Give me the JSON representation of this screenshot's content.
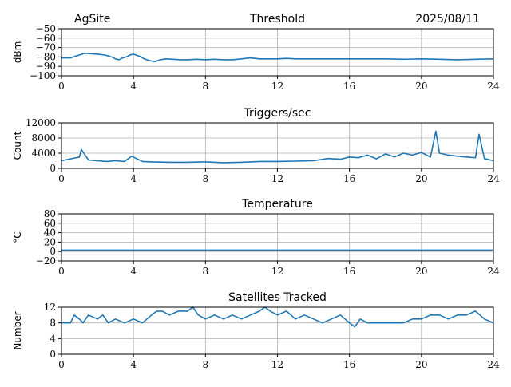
{
  "header": {
    "site": "AgSite",
    "date": "2025/08/11"
  },
  "colors": {
    "series": "#1f77b4",
    "grid": "#b0b0b0",
    "axis": "#000000"
  },
  "chart_data": [
    {
      "type": "line",
      "title": "Threshold",
      "xlabel": "",
      "ylabel": "dBm",
      "xlim": [
        0,
        24
      ],
      "ylim": [
        -100,
        -50
      ],
      "xticks": [
        "0",
        "4",
        "8",
        "12",
        "16",
        "20",
        "24"
      ],
      "yticks": [
        "−50",
        "−60",
        "−70",
        "−80",
        "−90",
        "−100"
      ],
      "grid": true,
      "series": [
        {
          "x": [
            0,
            0.5,
            0.8,
            1.0,
            1.3,
            1.6,
            2.0,
            2.4,
            2.8,
            3.0,
            3.2,
            3.4,
            3.6,
            3.8,
            4.0,
            4.3,
            4.6,
            4.9,
            5.2,
            5.5,
            5.8,
            6.2,
            6.6,
            7.0,
            7.5,
            8.0,
            8.5,
            9.0,
            9.5,
            10.0,
            10.5,
            11.0,
            11.5,
            12.0,
            12.5,
            13.0,
            14.0,
            15.0,
            16.0,
            17.0,
            18.0,
            19.0,
            20.0,
            21.0,
            22.0,
            23.0,
            24.0
          ],
          "y": [
            -81,
            -81,
            -79,
            -78,
            -76,
            -76.5,
            -77,
            -78,
            -80,
            -82,
            -83,
            -81,
            -80,
            -78,
            -77,
            -79,
            -82,
            -84,
            -85,
            -83,
            -82,
            -82.5,
            -83,
            -83,
            -82.5,
            -83,
            -82.5,
            -83,
            -83,
            -82,
            -81,
            -82,
            -82,
            -82,
            -81.5,
            -82,
            -82,
            -82,
            -82,
            -82,
            -82,
            -82.5,
            -82,
            -82.5,
            -83,
            -82.5,
            -82
          ]
        }
      ]
    },
    {
      "type": "line",
      "title": "Triggers/sec",
      "xlabel": "",
      "ylabel": "Count",
      "xlim": [
        0,
        24
      ],
      "ylim": [
        0,
        12000
      ],
      "xticks": [
        "0",
        "4",
        "8",
        "12",
        "16",
        "20",
        "24"
      ],
      "yticks": [
        "0",
        "4000",
        "8000",
        "12000"
      ],
      "grid": true,
      "series": [
        {
          "x": [
            0,
            0.5,
            1.0,
            1.1,
            1.5,
            2.0,
            2.5,
            3.0,
            3.5,
            3.9,
            4.5,
            5.0,
            6.0,
            7.0,
            8.0,
            9.0,
            10.0,
            11.0,
            12.0,
            13.0,
            14.0,
            14.8,
            15.5,
            16.0,
            16.5,
            17.0,
            17.5,
            18.0,
            18.5,
            19.0,
            19.5,
            20.0,
            20.5,
            20.8,
            21.0,
            21.5,
            22.0,
            22.5,
            23.0,
            23.2,
            23.5,
            24.0
          ],
          "y": [
            2000,
            2500,
            3000,
            5000,
            2200,
            2000,
            1800,
            2000,
            1800,
            3200,
            1800,
            1700,
            1600,
            1600,
            1700,
            1500,
            1600,
            1800,
            1800,
            1900,
            2000,
            2600,
            2400,
            3000,
            2800,
            3500,
            2500,
            3800,
            3000,
            4000,
            3500,
            4200,
            3000,
            9800,
            4000,
            3500,
            3200,
            3000,
            2800,
            9000,
            2600,
            2000
          ]
        }
      ]
    },
    {
      "type": "line",
      "title": "Temperature",
      "xlabel": "",
      "ylabel": "°C",
      "xlim": [
        0,
        24
      ],
      "ylim": [
        -20,
        80
      ],
      "xticks": [
        "0",
        "4",
        "8",
        "12",
        "16",
        "20",
        "24"
      ],
      "yticks": [
        "−20",
        "0",
        "20",
        "40",
        "60",
        "80"
      ],
      "grid": true,
      "series": [
        {
          "x": [
            0,
            24
          ],
          "y": [
            3,
            3
          ]
        }
      ]
    },
    {
      "type": "line",
      "title": "Satellites Tracked",
      "xlabel": "",
      "ylabel": "Number",
      "xlim": [
        0,
        24
      ],
      "ylim": [
        0,
        12
      ],
      "xticks": [
        "0",
        "4",
        "8",
        "12",
        "16",
        "20",
        "24"
      ],
      "yticks": [
        "0",
        "4",
        "8",
        "12"
      ],
      "grid": true,
      "series": [
        {
          "x": [
            0,
            0.5,
            0.7,
            1.0,
            1.2,
            1.5,
            2.0,
            2.3,
            2.6,
            3.0,
            3.5,
            4.0,
            4.5,
            5.0,
            5.3,
            5.6,
            6.0,
            6.5,
            7.0,
            7.3,
            7.6,
            8.0,
            8.5,
            9.0,
            9.5,
            10.0,
            10.5,
            11.0,
            11.3,
            11.6,
            12.0,
            12.5,
            13.0,
            13.5,
            14.0,
            14.5,
            15.0,
            15.5,
            16.0,
            16.3,
            16.6,
            17.0,
            17.5,
            18.0,
            18.5,
            19.0,
            19.5,
            20.0,
            20.5,
            21.0,
            21.5,
            22.0,
            22.5,
            23.0,
            23.5,
            24.0
          ],
          "y": [
            8,
            8,
            10,
            9,
            8,
            10,
            9,
            10,
            8,
            9,
            8,
            9,
            8,
            10,
            11,
            11,
            10,
            11,
            11,
            12,
            10,
            9,
            10,
            9,
            10,
            9,
            10,
            11,
            12,
            11,
            10,
            11,
            9,
            10,
            9,
            8,
            9,
            10,
            8,
            7,
            9,
            8,
            8,
            8,
            8,
            8,
            9,
            9,
            10,
            10,
            9,
            10,
            10,
            11,
            9,
            8
          ]
        }
      ]
    }
  ]
}
